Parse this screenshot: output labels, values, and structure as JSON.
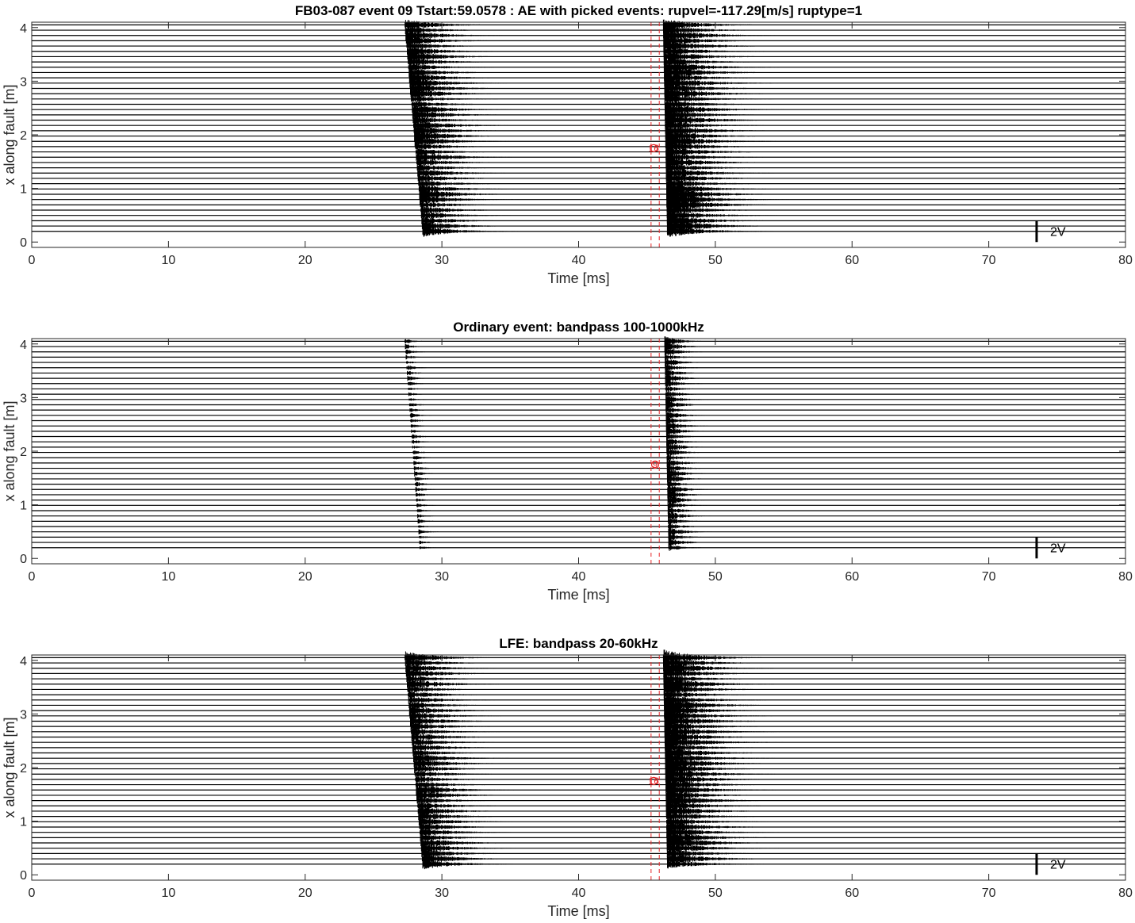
{
  "chart_data": [
    {
      "type": "line",
      "title": "FB03-087 event 09 Tstart:59.0578 : AE with picked events: rupvel=-117.29[m/s] ruptype=1",
      "xlabel": "Time [ms]",
      "ylabel": "x along fault [m]",
      "xlim": [
        0,
        80
      ],
      "ylim": [
        -0.1,
        4.1
      ],
      "xticks": [
        "0",
        "10",
        "20",
        "30",
        "40",
        "50",
        "60",
        "70",
        "80"
      ],
      "yticks": [
        "0",
        "1",
        "2",
        "3",
        "4"
      ],
      "grid": false,
      "scale_label": "2V",
      "channel_count": 40,
      "channel_range_m": [
        0.2,
        4.05
      ],
      "arrivals": [
        {
          "t_top": 27.3,
          "t_bottom": 28.6,
          "amplitude": 1.0,
          "coda_ms": 9.0
        },
        {
          "t_top": 46.2,
          "t_bottom": 46.5,
          "amplitude": 1.25,
          "coda_ms": 10.0
        }
      ],
      "picks": {
        "marker_label": "16",
        "pick_x_m": 1.75,
        "pick_t_ms": 45.5,
        "line_t_ms": [
          45.3,
          45.9
        ],
        "color": "#e8292b"
      }
    },
    {
      "type": "line",
      "title": "Ordinary event: bandpass 100-1000kHz",
      "xlabel": "Time [ms]",
      "ylabel": "x along fault [m]",
      "xlim": [
        0,
        80
      ],
      "ylim": [
        -0.1,
        4.1
      ],
      "xticks": [
        "0",
        "10",
        "20",
        "30",
        "40",
        "50",
        "60",
        "70",
        "80"
      ],
      "yticks": [
        "0",
        "1",
        "2",
        "3",
        "4"
      ],
      "grid": false,
      "scale_label": "2V",
      "channel_count": 40,
      "channel_range_m": [
        0.2,
        4.05
      ],
      "arrivals": [
        {
          "t_top": 27.3,
          "t_bottom": 28.4,
          "amplitude": 0.45,
          "coda_ms": 2.5
        },
        {
          "t_top": 46.3,
          "t_bottom": 46.6,
          "amplitude": 0.9,
          "coda_ms": 4.0
        }
      ],
      "picks": {
        "marker_label": "9",
        "pick_x_m": 1.75,
        "pick_t_ms": 45.6,
        "line_t_ms": [
          45.3,
          45.9
        ],
        "color": "#e8292b"
      }
    },
    {
      "type": "line",
      "title": "LFE: bandpass 20-60kHz",
      "xlabel": "Time [ms]",
      "ylabel": "x along fault [m]",
      "xlim": [
        0,
        80
      ],
      "ylim": [
        -0.1,
        4.1
      ],
      "xticks": [
        "0",
        "10",
        "20",
        "30",
        "40",
        "50",
        "60",
        "70",
        "80"
      ],
      "yticks": [
        "0",
        "1",
        "2",
        "3",
        "4"
      ],
      "grid": false,
      "scale_label": "2V",
      "channel_count": 40,
      "channel_range_m": [
        0.2,
        4.05
      ],
      "arrivals": [
        {
          "t_top": 27.3,
          "t_bottom": 28.6,
          "amplitude": 0.95,
          "coda_ms": 9.0
        },
        {
          "t_top": 46.2,
          "t_bottom": 46.5,
          "amplitude": 1.2,
          "coda_ms": 10.0
        }
      ],
      "picks": {
        "marker_label": "16",
        "pick_x_m": 1.75,
        "pick_t_ms": 45.5,
        "line_t_ms": [
          45.3,
          45.9
        ],
        "color": "#e8292b"
      }
    }
  ]
}
